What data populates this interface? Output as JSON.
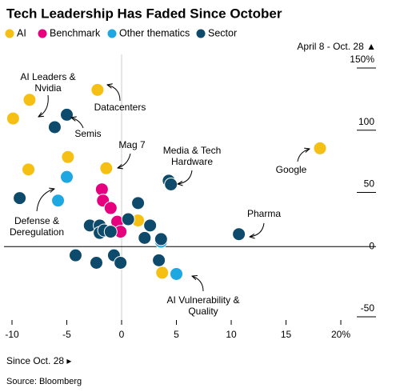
{
  "chart_data": {
    "type": "scatter",
    "title": "Tech Leadership Has Faded Since October",
    "y_label": "April 8 - Oct. 28 ▲",
    "x_label": "Since Oct. 28 ▸",
    "source": "Source: Bloomberg",
    "xlim": [
      -10.73,
      21.02
    ],
    "ylim": [
      -50,
      150
    ],
    "xticks": [
      -10,
      -5,
      0,
      5,
      10,
      15,
      {
        "value": 20,
        "label": "20%"
      }
    ],
    "yticks": [
      {
        "value": 150,
        "label": "150%"
      },
      100,
      50,
      0,
      -50
    ],
    "annotations": [
      [
        "AI Leaders &",
        "Nvidia"
      ],
      [
        "Datacenters"
      ],
      [
        "Semis"
      ],
      [
        "Mag 7"
      ],
      [
        "Media & Tech",
        "Hardware"
      ],
      [
        "Google"
      ],
      [
        "Defense &",
        "Deregulation"
      ],
      [
        "Pharma"
      ],
      [
        "AI Vulnerability &",
        "Quality"
      ]
    ],
    "series": [
      {
        "name": "AI",
        "color": "#f5c013",
        "x": [
          -2.2,
          -8.4,
          -9.9,
          -4.9,
          -8.5,
          -1.4,
          18.1,
          1.5,
          3.7
        ],
        "values": [
          126,
          118,
          103,
          72,
          62,
          63,
          79,
          21,
          -21
        ]
      },
      {
        "name": "Benchmark",
        "color": "#e6007e",
        "x": [
          -1.8,
          -1.7,
          -1.0,
          -0.4,
          -0.1
        ],
        "values": [
          46,
          37,
          31,
          20,
          12
        ]
      },
      {
        "name": "Other thematics",
        "color": "#1ea7e1",
        "x": [
          -5.0,
          -5.8,
          3.6,
          5.0
        ],
        "values": [
          56,
          37,
          4,
          -22
        ]
      },
      {
        "name": "Sector",
        "color": "#0e4a6b",
        "x": [
          -5.0,
          -6.1,
          -9.3,
          4.3,
          4.5,
          10.7,
          1.5,
          0.6,
          -2.9,
          -2.0,
          -2.0,
          -1.6,
          -1.0,
          2.1,
          3.6,
          -4.2,
          -2.3,
          -0.7,
          -0.1,
          3.4,
          2.6
        ],
        "values": [
          106,
          96,
          39,
          53,
          50,
          10,
          35,
          22,
          17,
          17,
          11,
          13,
          12,
          7,
          6,
          -7,
          -13,
          -7,
          -13,
          -11,
          17
        ]
      }
    ]
  }
}
